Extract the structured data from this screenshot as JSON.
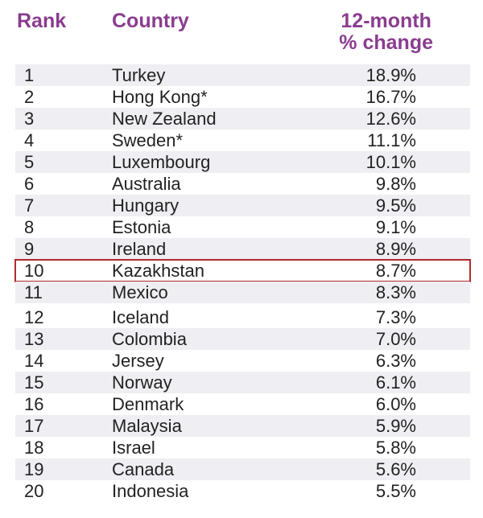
{
  "headers": {
    "rank": "Rank",
    "country": "Country",
    "change_line1": "12-month",
    "change_line2": "% change"
  },
  "highlight_rank": "10",
  "rows": [
    {
      "rank": "1",
      "country": "Turkey",
      "change": "18.9%"
    },
    {
      "rank": "2",
      "country": "Hong Kong*",
      "change": "16.7%"
    },
    {
      "rank": "3",
      "country": "New Zealand",
      "change": "12.6%"
    },
    {
      "rank": "4",
      "country": "Sweden*",
      "change": "11.1%"
    },
    {
      "rank": "5",
      "country": "Luxembourg",
      "change": "10.1%"
    },
    {
      "rank": "6",
      "country": "Australia",
      "change": "9.8%"
    },
    {
      "rank": "7",
      "country": "Hungary",
      "change": "9.5%"
    },
    {
      "rank": "8",
      "country": "Estonia",
      "change": "9.1%"
    },
    {
      "rank": "9",
      "country": "Ireland",
      "change": "8.9%"
    },
    {
      "rank": "10",
      "country": "Kazakhstan",
      "change": "8.7%"
    },
    {
      "rank": "11",
      "country": "Mexico",
      "change": "8.3%"
    },
    {
      "rank": "12",
      "country": "Iceland",
      "change": "7.3%"
    },
    {
      "rank": "13",
      "country": "Colombia",
      "change": "7.0%"
    },
    {
      "rank": "14",
      "country": "Jersey",
      "change": "6.3%"
    },
    {
      "rank": "15",
      "country": "Norway",
      "change": "6.1%"
    },
    {
      "rank": "16",
      "country": "Denmark",
      "change": "6.0%"
    },
    {
      "rank": "17",
      "country": "Malaysia",
      "change": "5.9%"
    },
    {
      "rank": "18",
      "country": "Israel",
      "change": "5.8%"
    },
    {
      "rank": "19",
      "country": "Canada",
      "change": "5.6%"
    },
    {
      "rank": "20",
      "country": "Indonesia",
      "change": "5.5%"
    }
  ]
}
